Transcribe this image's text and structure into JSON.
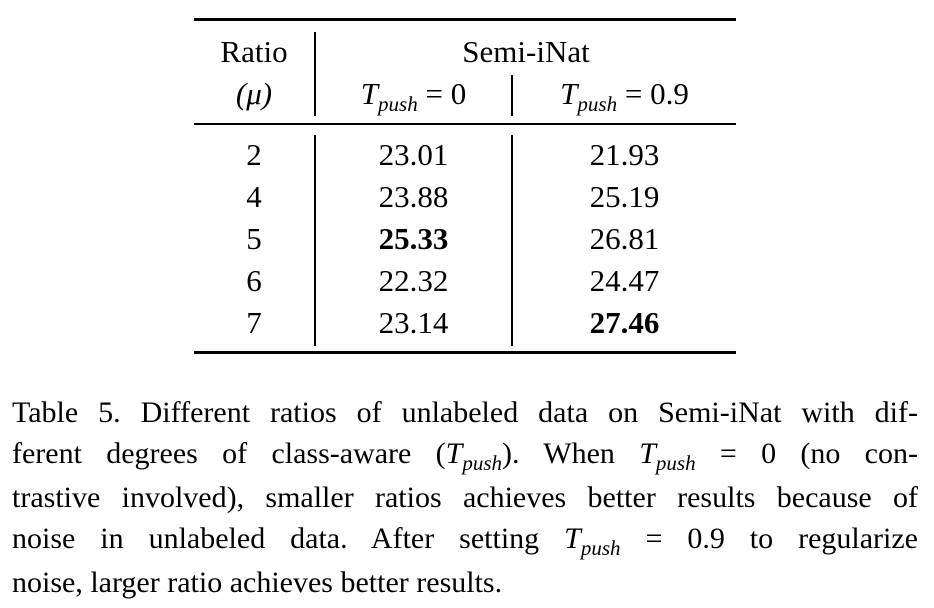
{
  "table": {
    "col_ratio_header": "Ratio",
    "col_ratio_sub": "(μ)",
    "group_header": "Semi-iNat",
    "sub_header_0": {
      "var": "T",
      "sub": "push",
      "rest": " = 0"
    },
    "sub_header_1": {
      "var": "T",
      "sub": "push",
      "rest": " = 0.9"
    },
    "rows": [
      {
        "ratio": "2",
        "t0": "23.01",
        "t09": "21.93",
        "bold_t0": false,
        "bold_t09": false
      },
      {
        "ratio": "4",
        "t0": "23.88",
        "t09": "25.19",
        "bold_t0": false,
        "bold_t09": false
      },
      {
        "ratio": "5",
        "t0": "25.33",
        "t09": "26.81",
        "bold_t0": true,
        "bold_t09": false
      },
      {
        "ratio": "6",
        "t0": "22.32",
        "t09": "24.47",
        "bold_t0": false,
        "bold_t09": false
      },
      {
        "ratio": "7",
        "t0": "23.14",
        "t09": "27.46",
        "bold_t0": false,
        "bold_t09": true
      }
    ]
  },
  "caption": {
    "l1": "Table 5.  Different ratios of unlabeled data on Semi-iNat with dif-",
    "l2a": "ferent degrees of class-aware (",
    "l2b": "). When ",
    "l2c": " = 0 (no con-",
    "l3": "trastive involved), smaller ratios achieves better results because of",
    "l4a": "noise in unlabeled data.  After setting ",
    "l4b": " = 0.9 to regularize",
    "l5": "noise, larger ratio achieves better results.",
    "var": "T",
    "sub": "push"
  }
}
